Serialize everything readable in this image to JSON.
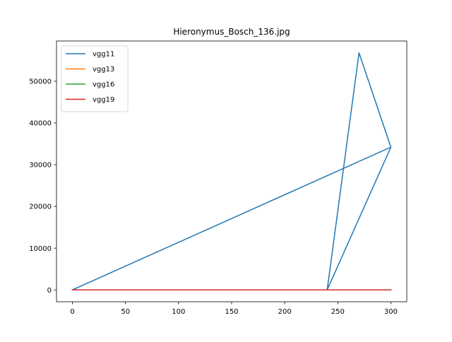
{
  "chart_data": {
    "type": "line",
    "title": "Hieronymus_Bosch_136.jpg",
    "xlabel": "",
    "ylabel": "",
    "xlim": [
      -15,
      315
    ],
    "ylim": [
      -2840,
      59640
    ],
    "x_ticks": [
      0,
      50,
      100,
      150,
      200,
      250,
      300
    ],
    "y_ticks": [
      0,
      10000,
      20000,
      30000,
      40000,
      50000
    ],
    "grid": false,
    "legend_position": "top-left",
    "series": [
      {
        "name": "vgg11",
        "color": "#1f77b4",
        "x": [
          0,
          300,
          240,
          270,
          300
        ],
        "y": [
          0,
          34200,
          0,
          56800,
          34200
        ]
      },
      {
        "name": "vgg13",
        "color": "#ff7f0e",
        "x": [
          0,
          300
        ],
        "y": [
          0,
          0
        ]
      },
      {
        "name": "vgg16",
        "color": "#2ca02c",
        "x": [
          0,
          300
        ],
        "y": [
          0,
          0
        ]
      },
      {
        "name": "vgg19",
        "color": "#d62728",
        "x": [
          0,
          300
        ],
        "y": [
          0,
          0
        ]
      }
    ]
  }
}
